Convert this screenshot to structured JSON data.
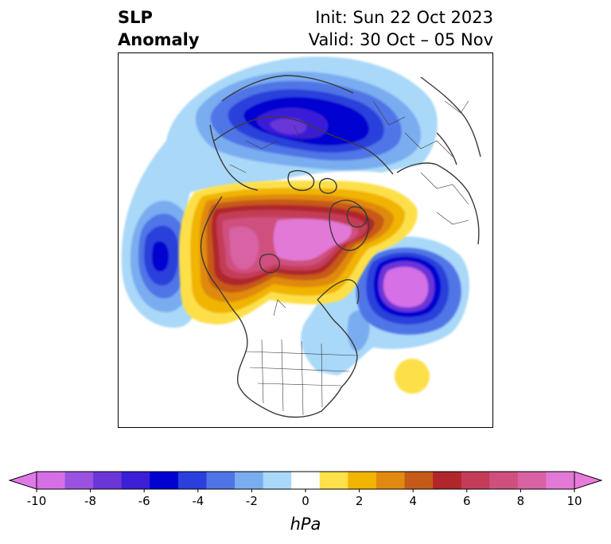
{
  "header": {
    "title_line1": "SLP",
    "title_line2": "Anomaly",
    "init": "Init: Sun 22 Oct 2023",
    "valid": "Valid: 30 Oct – 05 Nov"
  },
  "colorbar": {
    "unit": "hPa",
    "ticks": [
      "-10",
      "-8",
      "-6",
      "-4",
      "-2",
      "0",
      "2",
      "4",
      "6",
      "8",
      "10"
    ],
    "levels": [
      -10,
      -9,
      -8,
      -7,
      -6,
      -5,
      -4,
      -3,
      -2,
      -1,
      1,
      2,
      3,
      4,
      5,
      6,
      7,
      8,
      9,
      10
    ],
    "colors": [
      "#d66fe6",
      "#9a53e0",
      "#6a36d8",
      "#3a1fd6",
      "#0000d0",
      "#2a3fdb",
      "#4f74e6",
      "#7aacf0",
      "#a9d8f8",
      "#ffffff",
      "#fde04a",
      "#f1b400",
      "#e08a10",
      "#c65a18",
      "#b0262a",
      "#c43c58",
      "#cf4f7e",
      "#d862a4",
      "#e279d6"
    ],
    "under_color": "#e079e8",
    "over_color": "#e87ad8"
  },
  "map_colors": {
    "coast": "#3a3a3a"
  }
}
